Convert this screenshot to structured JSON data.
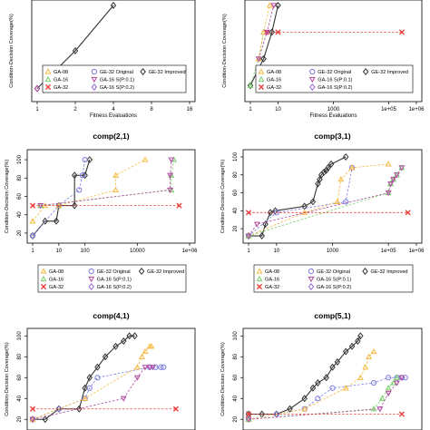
{
  "colors": {
    "GA-08": "#f5b942",
    "GA-16": "#7ad06a",
    "GA-32": "#e8413c",
    "GE-32 Original": "#7a7ae0",
    "GA-16 S(P:0.1)": "#b04aa0",
    "GA-16 S(P:0.2)": "#9a6ad8",
    "GE-32 Improved": "#333333",
    "frame": "#000000"
  },
  "legend_names": [
    "GA-08",
    "GA-16",
    "GA-32",
    "GE-32 Original",
    "GA-16 S(P:0.1)",
    "GA-16 S(P:0.2)",
    "GE-32 Improved"
  ],
  "chart_data": [
    {
      "type": "line",
      "title": "",
      "xlabel": "Fitness Evaluations",
      "ylabel": "Condition-Decision Coverage(%)",
      "x_scale": "log2",
      "xlim": [
        1,
        16
      ],
      "ylim": [
        45,
        105
      ],
      "x_ticks": [
        {
          "v": 1,
          "label": "1"
        },
        {
          "v": 2,
          "label": "2"
        },
        {
          "v": 4,
          "label": "4"
        },
        {
          "v": 8,
          "label": "8"
        },
        {
          "v": 16,
          "label": "16"
        }
      ],
      "y_ticks": [],
      "legend": "bottom",
      "series": [
        {
          "name": "GE-32 Improved",
          "x": [
            1,
            2,
            4
          ],
          "y": [
            50,
            75,
            105
          ],
          "marker": "diamond"
        },
        {
          "name": "GA-16 S(P:0.1)",
          "x": [
            1
          ],
          "y": [
            50
          ],
          "marker": "diamond"
        }
      ]
    },
    {
      "type": "line",
      "title": "",
      "xlabel": "Fitness Evaluations",
      "ylabel": "Condition-Decision Coverage(%)",
      "x_scale": "log10",
      "xlim": [
        1,
        1000000
      ],
      "ylim": [
        15,
        100
      ],
      "x_ticks": [
        {
          "v": 1,
          "label": "1"
        },
        {
          "v": 10,
          "label": "10"
        },
        {
          "v": 1000,
          "label": "1000"
        },
        {
          "v": 100000,
          "label": "1e+05"
        },
        {
          "v": 1000000,
          "label": "1e+06"
        }
      ],
      "y_ticks": [],
      "legend": "bottom",
      "series": [
        {
          "name": "GE-32 Improved",
          "x": [
            1,
            3,
            6,
            10
          ],
          "y": [
            25,
            50,
            75,
            100
          ],
          "marker": "diamond"
        },
        {
          "name": "GA-16",
          "x": [
            1,
            2,
            3
          ],
          "y": [
            25,
            50,
            75
          ],
          "marker": "triangle-up"
        },
        {
          "name": "GA-08",
          "x": [
            2,
            3,
            5
          ],
          "y": [
            50,
            75,
            100
          ],
          "marker": "triangle-up"
        },
        {
          "name": "GA-32",
          "x": [
            4,
            10,
            300000
          ],
          "y": [
            75,
            75,
            75
          ],
          "marker": "x"
        },
        {
          "name": "GA-16 S(P:0.1)",
          "x": [
            2,
            4,
            7
          ],
          "y": [
            50,
            75,
            100
          ],
          "marker": "triangle-down"
        }
      ]
    },
    {
      "type": "line",
      "title": "comp(2,1)",
      "xlabel": "Fitness Evaluations",
      "ylabel": "Condition-Decision Coverage(%)",
      "x_scale": "log10",
      "xlim": [
        1,
        1000000
      ],
      "ylim": [
        15,
        105
      ],
      "x_ticks": [
        {
          "v": 1,
          "label": "1"
        },
        {
          "v": 10,
          "label": "10"
        },
        {
          "v": 100,
          "label": "100"
        },
        {
          "v": 10000,
          "label": "10000"
        },
        {
          "v": 1000000,
          "label": "1e+06"
        }
      ],
      "y_ticks": [
        {
          "v": 20,
          "label": "20"
        },
        {
          "v": 40,
          "label": "40"
        },
        {
          "v": 60,
          "label": "60"
        },
        {
          "v": 80,
          "label": "80"
        },
        {
          "v": 100,
          "label": "100"
        }
      ],
      "legend": "bottom",
      "series": [
        {
          "name": "GE-32 Improved",
          "x": [
            1,
            3,
            8,
            10,
            40,
            40,
            100,
            150
          ],
          "y": [
            17,
            33,
            33,
            50,
            50,
            83,
            83,
            100
          ],
          "marker": "diamond"
        },
        {
          "name": "GE-32 Original",
          "x": [
            1,
            10,
            60,
            80,
            100
          ],
          "y": [
            17,
            50,
            67,
            83,
            100
          ],
          "marker": "circle"
        },
        {
          "name": "GA-08",
          "x": [
            1,
            3,
            10,
            1500,
            1500,
            20000
          ],
          "y": [
            33,
            50,
            50,
            67,
            83,
            100
          ],
          "marker": "triangle-up"
        },
        {
          "name": "GA-16",
          "x": [
            2,
            200000,
            200000,
            250000
          ],
          "y": [
            50,
            67,
            83,
            100
          ],
          "marker": "triangle-up"
        },
        {
          "name": "GA-16 S(P:0.1)",
          "x": [
            2,
            180000,
            180000,
            200000
          ],
          "y": [
            50,
            67,
            83,
            100
          ],
          "marker": "triangle-down"
        },
        {
          "name": "GA-32",
          "x": [
            1,
            400000
          ],
          "y": [
            50,
            50
          ],
          "marker": "x"
        }
      ]
    },
    {
      "type": "line",
      "title": "comp(3,1)",
      "xlabel": "Fitness Evaluations",
      "ylabel": "Condition-Decision Coverage(%)",
      "x_scale": "log10",
      "xlim": [
        1,
        1000000
      ],
      "ylim": [
        10,
        102
      ],
      "x_ticks": [
        {
          "v": 1,
          "label": "1"
        },
        {
          "v": 10,
          "label": "10"
        },
        {
          "v": 1000,
          "label": "1000"
        },
        {
          "v": 100000,
          "label": "1e+05"
        },
        {
          "v": 1000000,
          "label": "1e+06"
        }
      ],
      "y_ticks": [
        {
          "v": 20,
          "label": "20"
        },
        {
          "v": 40,
          "label": "40"
        },
        {
          "v": 60,
          "label": "60"
        },
        {
          "v": 80,
          "label": "80"
        },
        {
          "v": 100,
          "label": "100"
        }
      ],
      "legend": "bottom",
      "series": [
        {
          "name": "GE-32 Improved",
          "x": [
            1,
            3,
            4,
            6,
            9,
            100,
            200,
            300,
            350,
            400,
            500,
            600,
            700,
            900,
            3000
          ],
          "y": [
            12,
            12,
            25,
            38,
            40,
            45,
            50,
            70,
            75,
            80,
            83,
            85,
            88,
            92,
            100
          ],
          "marker": "diamond"
        },
        {
          "name": "GE-32 Original",
          "x": [
            1,
            10,
            3000,
            5000
          ],
          "y": [
            12,
            38,
            50,
            88
          ],
          "marker": "circle"
        },
        {
          "name": "GA-08",
          "x": [
            1,
            100,
            1500,
            2000,
            5000,
            100000
          ],
          "y": [
            12,
            38,
            50,
            75,
            88,
            92
          ],
          "marker": "triangle-up"
        },
        {
          "name": "GA-16",
          "x": [
            1,
            100000,
            120000,
            150000,
            200000,
            300000
          ],
          "y": [
            12,
            60,
            70,
            75,
            80,
            88
          ],
          "marker": "triangle-up"
        },
        {
          "name": "GA-16 S(P:0.1)",
          "x": [
            1,
            2,
            100000,
            120000,
            150000,
            200000,
            300000
          ],
          "y": [
            12,
            25,
            60,
            70,
            75,
            80,
            88
          ],
          "marker": "triangle-down"
        },
        {
          "name": "GA-32",
          "x": [
            1,
            500000
          ],
          "y": [
            38,
            38
          ],
          "marker": "x"
        }
      ]
    },
    {
      "type": "line",
      "title": "comp(4,1)",
      "xlabel": "Fitness Evaluations",
      "ylabel": "Condition-Decision Coverage(%)",
      "x_scale": "log10",
      "xlim": [
        1,
        1000000
      ],
      "ylim": [
        15,
        102
      ],
      "x_ticks": [],
      "y_ticks": [
        {
          "v": 20,
          "label": "20"
        },
        {
          "v": 40,
          "label": "40"
        },
        {
          "v": 60,
          "label": "60"
        },
        {
          "v": 80,
          "label": "80"
        },
        {
          "v": 100,
          "label": "100"
        }
      ],
      "legend": "none",
      "series": [
        {
          "name": "GE-32 Improved",
          "x": [
            1,
            3,
            10,
            60,
            100,
            150,
            300,
            600,
            1500,
            3000,
            5000,
            8000
          ],
          "y": [
            20,
            20,
            30,
            30,
            50,
            60,
            70,
            80,
            90,
            95,
            100,
            100
          ],
          "marker": "diamond"
        },
        {
          "name": "GE-32 Original",
          "x": [
            1,
            10,
            100,
            150,
            300,
            30000,
            50000,
            80000,
            100000
          ],
          "y": [
            20,
            30,
            40,
            50,
            60,
            70,
            70,
            70,
            70
          ],
          "marker": "circle"
        },
        {
          "name": "GA-08",
          "x": [
            1,
            100,
            10000,
            15000,
            20000,
            30000,
            35000
          ],
          "y": [
            20,
            40,
            70,
            80,
            85,
            90,
            90
          ],
          "marker": "triangle-up"
        },
        {
          "name": "GA-16 S(P:0.1)",
          "x": [
            1,
            3000,
            10000,
            20000,
            30000,
            40000
          ],
          "y": [
            20,
            40,
            60,
            70,
            70,
            70
          ],
          "marker": "triangle-down"
        },
        {
          "name": "GA-32",
          "x": [
            1,
            300000
          ],
          "y": [
            30,
            30
          ],
          "marker": "x"
        }
      ]
    },
    {
      "type": "line",
      "title": "comp(5,1)",
      "xlabel": "Fitness Evaluations",
      "ylabel": "Condition-Decision Coverage(%)",
      "x_scale": "log10",
      "xlim": [
        1,
        1000000
      ],
      "ylim": [
        15,
        102
      ],
      "x_ticks": [],
      "y_ticks": [
        {
          "v": 20,
          "label": "20"
        },
        {
          "v": 40,
          "label": "40"
        },
        {
          "v": 60,
          "label": "60"
        },
        {
          "v": 80,
          "label": "80"
        },
        {
          "v": 100,
          "label": "100"
        }
      ],
      "legend": "none",
      "series": [
        {
          "name": "GE-32 Improved",
          "x": [
            1,
            3,
            10,
            30,
            100,
            200,
            300,
            600,
            1000,
            1500,
            3000,
            5000,
            8000,
            10000
          ],
          "y": [
            25,
            25,
            25,
            30,
            40,
            50,
            55,
            60,
            70,
            75,
            85,
            90,
            95,
            100
          ],
          "marker": "diamond"
        },
        {
          "name": "GE-32 Original",
          "x": [
            1,
            10,
            100,
            300,
            1000,
            30000,
            100000,
            200000,
            300000,
            400000
          ],
          "y": [
            20,
            25,
            30,
            40,
            50,
            55,
            60,
            60,
            60,
            60
          ],
          "marker": "circle"
        },
        {
          "name": "GA-08",
          "x": [
            1,
            100,
            3000,
            10000,
            15000,
            20000,
            30000
          ],
          "y": [
            20,
            30,
            50,
            60,
            70,
            80,
            85
          ],
          "marker": "triangle-up"
        },
        {
          "name": "GA-16",
          "x": [
            1,
            30000,
            60000,
            100000,
            150000,
            200000
          ],
          "y": [
            20,
            30,
            40,
            50,
            55,
            60
          ],
          "marker": "triangle-up"
        },
        {
          "name": "GA-16 S(P:0.1)",
          "x": [
            1,
            50000,
            100000,
            200000,
            300000
          ],
          "y": [
            20,
            30,
            45,
            55,
            60
          ],
          "marker": "triangle-down"
        },
        {
          "name": "GA-32",
          "x": [
            1,
            300000
          ],
          "y": [
            25,
            25
          ],
          "marker": "x"
        }
      ]
    }
  ]
}
